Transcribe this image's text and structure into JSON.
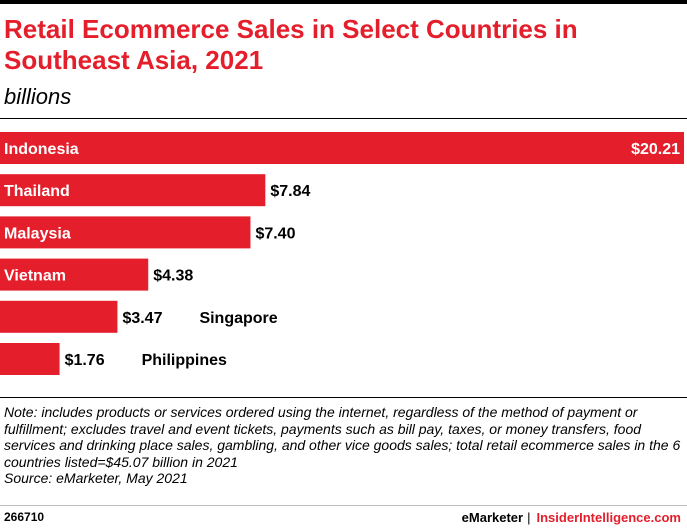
{
  "header": {
    "title": "Retail Ecommerce Sales in Select Countries in Southeast Asia, 2021",
    "subtitle": "billions"
  },
  "chart_data": {
    "type": "bar",
    "orientation": "horizontal",
    "title": "Retail Ecommerce Sales in Select Countries in Southeast Asia, 2021",
    "subtitle": "billions",
    "xlabel": "",
    "ylabel": "",
    "categories": [
      "Indonesia",
      "Thailand",
      "Malaysia",
      "Vietnam",
      "Singapore",
      "Philippines"
    ],
    "values": [
      20.21,
      7.84,
      7.4,
      4.38,
      3.47,
      1.76
    ],
    "value_labels": [
      "$20.21",
      "$7.84",
      "$7.40",
      "$4.38",
      "$3.47",
      "$1.76"
    ],
    "xlim": [
      0,
      20.21
    ],
    "grid": false,
    "legend": "none",
    "bar_color": "#e41e2b"
  },
  "footer": {
    "note": "Note: includes products or services ordered using the internet, regardless of the method of payment or fulfillment; excludes travel and event tickets, payments such as bill pay, taxes, or money transfers, food services and drinking place sales, gambling, and other vice goods sales; total retail ecommerce sales in the 6 countries listed=$45.07 billion in 2021",
    "source": "Source: eMarketer, May 2021",
    "chart_id": "266710",
    "brand_left": "eMarketer",
    "brand_separator": "|",
    "brand_right": "InsiderIntelligence.com"
  },
  "colors": {
    "accent": "#e41e2b",
    "text": "#000000"
  }
}
